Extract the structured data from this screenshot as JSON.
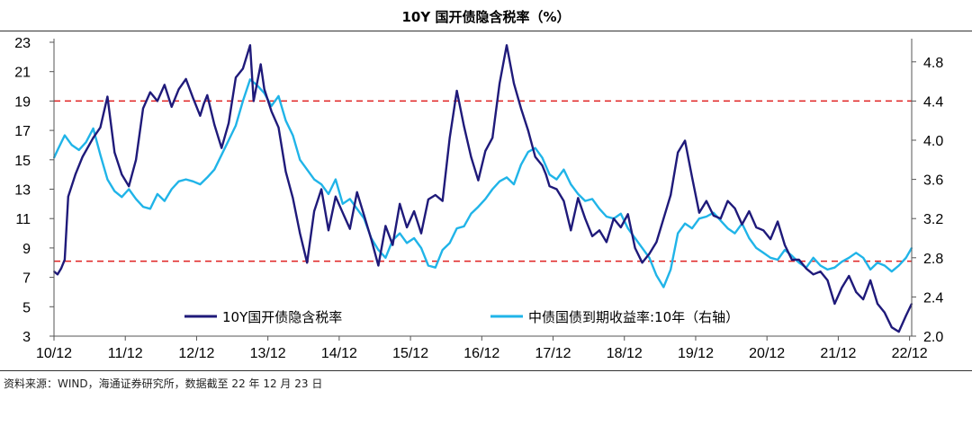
{
  "title": "10Y 国开债隐含税率（%）",
  "source_note": "资料来源：WIND，海通证券研究所，数据截至 22 年 12 月 23 日",
  "chart_data": {
    "type": "line",
    "x_ticks": [
      "10/12",
      "11/12",
      "12/12",
      "13/12",
      "14/12",
      "15/12",
      "16/12",
      "17/12",
      "18/12",
      "19/12",
      "20/12",
      "21/12",
      "22/12"
    ],
    "y_left": {
      "ticks": [
        "3",
        "5",
        "7",
        "9",
        "11",
        "13",
        "15",
        "17",
        "19",
        "21",
        "23"
      ],
      "lim": [
        3,
        23
      ]
    },
    "y_right": {
      "ticks": [
        "2.0",
        "2.4",
        "2.8",
        "3.2",
        "3.6",
        "4.0",
        "4.4",
        "4.8"
      ],
      "lim": [
        2.0,
        5.0
      ]
    },
    "reference_lines": [
      {
        "axis": "left",
        "value": 19,
        "color": "#e02020",
        "style": "dashed"
      },
      {
        "axis": "left",
        "value": 8.1,
        "color": "#e02020",
        "style": "dashed"
      }
    ],
    "series": [
      {
        "name": "10Y国开债隐含税率",
        "axis": "left",
        "color": "#1f1a7a",
        "x": [
          2010.95,
          2011.0,
          2011.05,
          2011.1,
          2011.15,
          2011.25,
          2011.35,
          2011.5,
          2011.6,
          2011.7,
          2011.8,
          2011.9,
          2012.0,
          2012.1,
          2012.2,
          2012.3,
          2012.4,
          2012.5,
          2012.6,
          2012.7,
          2012.8,
          2012.9,
          2013.0,
          2013.05,
          2013.1,
          2013.2,
          2013.3,
          2013.4,
          2013.5,
          2013.6,
          2013.7,
          2013.75,
          2013.85,
          2013.9,
          2014.0,
          2014.1,
          2014.2,
          2014.3,
          2014.4,
          2014.5,
          2014.6,
          2014.7,
          2014.8,
          2014.9,
          2015.0,
          2015.1,
          2015.2,
          2015.3,
          2015.4,
          2015.5,
          2015.6,
          2015.7,
          2015.8,
          2015.9,
          2016.0,
          2016.1,
          2016.2,
          2016.3,
          2016.4,
          2016.5,
          2016.6,
          2016.7,
          2016.8,
          2016.9,
          2017.0,
          2017.1,
          2017.2,
          2017.3,
          2017.4,
          2017.5,
          2017.6,
          2017.7,
          2017.8,
          2017.85,
          2017.9,
          2018.0,
          2018.1,
          2018.2,
          2018.3,
          2018.4,
          2018.5,
          2018.6,
          2018.7,
          2018.8,
          2018.9,
          2019.0,
          2019.1,
          2019.2,
          2019.3,
          2019.4,
          2019.5,
          2019.6,
          2019.7,
          2019.8,
          2019.9,
          2020.0,
          2020.1,
          2020.2,
          2020.3,
          2020.4,
          2020.5,
          2020.6,
          2020.7,
          2020.8,
          2020.9,
          2021.0,
          2021.1,
          2021.2,
          2021.3,
          2021.4,
          2021.5,
          2021.6,
          2021.7,
          2021.8,
          2021.9,
          2022.0,
          2022.1,
          2022.2,
          2022.3,
          2022.4,
          2022.5,
          2022.6,
          2022.7,
          2022.8,
          2022.9,
          2022.98
        ],
        "y": [
          7.4,
          7.2,
          7.6,
          8.2,
          12.5,
          14.0,
          15.2,
          16.5,
          17.2,
          19.3,
          15.5,
          14.0,
          13.2,
          15.0,
          18.5,
          19.6,
          19.0,
          20.1,
          18.6,
          19.8,
          20.5,
          19.2,
          18.0,
          18.8,
          19.4,
          17.4,
          15.8,
          17.5,
          20.6,
          21.2,
          22.8,
          19.0,
          21.5,
          19.8,
          18.3,
          17.2,
          14.2,
          12.4,
          10.0,
          8.0,
          11.5,
          13.0,
          10.2,
          12.5,
          11.4,
          10.3,
          12.8,
          11.2,
          9.6,
          7.8,
          10.5,
          9.2,
          12.0,
          10.4,
          11.5,
          10.0,
          12.3,
          12.6,
          12.2,
          16.5,
          19.7,
          17.3,
          15.2,
          13.6,
          15.6,
          16.5,
          20.2,
          22.8,
          20.2,
          18.5,
          17.0,
          15.2,
          14.6,
          14.0,
          13.2,
          13.0,
          12.2,
          10.2,
          12.4,
          11.0,
          9.8,
          10.2,
          9.4,
          11.0,
          10.4,
          11.3,
          9.0,
          8.0,
          8.6,
          9.4,
          11.0,
          12.6,
          15.5,
          16.3,
          13.8,
          11.4,
          12.2,
          11.2,
          11.0,
          12.2,
          11.7,
          10.6,
          11.5,
          10.4,
          10.2,
          9.6,
          10.8,
          9.2,
          8.2,
          8.2,
          7.6,
          7.2,
          7.4,
          6.8,
          5.2,
          6.3,
          7.1,
          6.0,
          5.5,
          6.8,
          5.2,
          4.6,
          3.6,
          3.3,
          4.4,
          5.2
        ]
      },
      {
        "name": "中债国债到期收益率:10年（右轴）",
        "axis": "right",
        "color": "#20b4e8",
        "x": [
          2010.95,
          2011.0,
          2011.1,
          2011.2,
          2011.3,
          2011.4,
          2011.5,
          2011.6,
          2011.7,
          2011.8,
          2011.9,
          2012.0,
          2012.1,
          2012.2,
          2012.3,
          2012.4,
          2012.5,
          2012.6,
          2012.7,
          2012.8,
          2012.9,
          2013.0,
          2013.1,
          2013.2,
          2013.3,
          2013.4,
          2013.5,
          2013.6,
          2013.7,
          2013.8,
          2013.9,
          2014.0,
          2014.1,
          2014.2,
          2014.3,
          2014.4,
          2014.5,
          2014.6,
          2014.7,
          2014.8,
          2014.9,
          2015.0,
          2015.1,
          2015.2,
          2015.3,
          2015.4,
          2015.5,
          2015.6,
          2015.7,
          2015.8,
          2015.9,
          2016.0,
          2016.1,
          2016.2,
          2016.3,
          2016.4,
          2016.5,
          2016.6,
          2016.7,
          2016.8,
          2016.9,
          2017.0,
          2017.1,
          2017.2,
          2017.3,
          2017.4,
          2017.5,
          2017.6,
          2017.7,
          2017.8,
          2017.9,
          2018.0,
          2018.1,
          2018.2,
          2018.3,
          2018.4,
          2018.5,
          2018.6,
          2018.7,
          2018.8,
          2018.9,
          2019.0,
          2019.1,
          2019.2,
          2019.3,
          2019.4,
          2019.5,
          2019.6,
          2019.7,
          2019.8,
          2019.9,
          2020.0,
          2020.1,
          2020.2,
          2020.3,
          2020.4,
          2020.5,
          2020.6,
          2020.7,
          2020.8,
          2020.9,
          2021.0,
          2021.1,
          2021.2,
          2021.3,
          2021.4,
          2021.5,
          2021.6,
          2021.7,
          2021.8,
          2021.9,
          2022.0,
          2022.1,
          2022.2,
          2022.3,
          2022.4,
          2022.5,
          2022.6,
          2022.7,
          2022.8,
          2022.9,
          2022.98
        ],
        "y": [
          3.82,
          3.9,
          4.05,
          3.95,
          3.9,
          3.98,
          4.12,
          3.85,
          3.6,
          3.48,
          3.42,
          3.5,
          3.4,
          3.32,
          3.3,
          3.45,
          3.38,
          3.5,
          3.58,
          3.6,
          3.58,
          3.55,
          3.62,
          3.7,
          3.85,
          4.0,
          4.15,
          4.4,
          4.62,
          4.56,
          4.48,
          4.35,
          4.45,
          4.2,
          4.05,
          3.8,
          3.7,
          3.6,
          3.55,
          3.45,
          3.6,
          3.35,
          3.4,
          3.3,
          3.2,
          3.0,
          2.88,
          2.8,
          2.98,
          3.05,
          2.95,
          3.0,
          2.9,
          2.72,
          2.7,
          2.88,
          2.95,
          3.1,
          3.12,
          3.25,
          3.32,
          3.4,
          3.5,
          3.58,
          3.62,
          3.55,
          3.75,
          3.88,
          3.92,
          3.82,
          3.65,
          3.6,
          3.7,
          3.55,
          3.45,
          3.38,
          3.4,
          3.3,
          3.22,
          3.2,
          3.25,
          3.1,
          3.0,
          2.9,
          2.8,
          2.62,
          2.5,
          2.68,
          3.05,
          3.15,
          3.1,
          3.2,
          3.22,
          3.26,
          3.18,
          3.1,
          3.05,
          3.15,
          3.0,
          2.9,
          2.85,
          2.8,
          2.78,
          2.88,
          2.82,
          2.75,
          2.7,
          2.8,
          2.72,
          2.68,
          2.7,
          2.76,
          2.8,
          2.85,
          2.8,
          2.68,
          2.75,
          2.72,
          2.66,
          2.72,
          2.8,
          2.9
        ]
      }
    ]
  }
}
